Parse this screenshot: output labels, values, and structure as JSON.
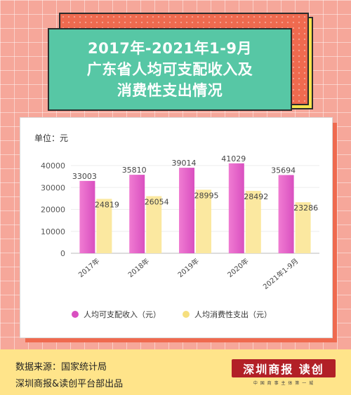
{
  "title": {
    "line1": "2017年-2021年1-9月",
    "line2": "广东省人均可支配收入及",
    "line3": "消费性支出情况"
  },
  "unit_label": "单位：元",
  "chart_data": {
    "type": "bar",
    "categories": [
      "2017年",
      "2018年",
      "2019年",
      "2020年",
      "2021年1-9月"
    ],
    "series": [
      {
        "name": "人均可支配收入（元）",
        "values": [
          33003,
          35810,
          39014,
          41029,
          35694
        ],
        "color": "#d94fc0"
      },
      {
        "name": "人均消费性支出（元）",
        "values": [
          24819,
          26054,
          28995,
          28492,
          23286
        ],
        "color": "#fbe8a0"
      }
    ],
    "ylim": [
      0,
      40000
    ],
    "yticks": [
      "0",
      "10000",
      "20000",
      "30000",
      "40000"
    ],
    "legend_position": "bottom"
  },
  "footer": {
    "source": "数据来源：国家统计局",
    "producer": "深圳商报&读创平台部出品",
    "logo_text": "深圳商报 读创",
    "logo_sub": "中 国 商 事 主 体 第 一 城"
  }
}
